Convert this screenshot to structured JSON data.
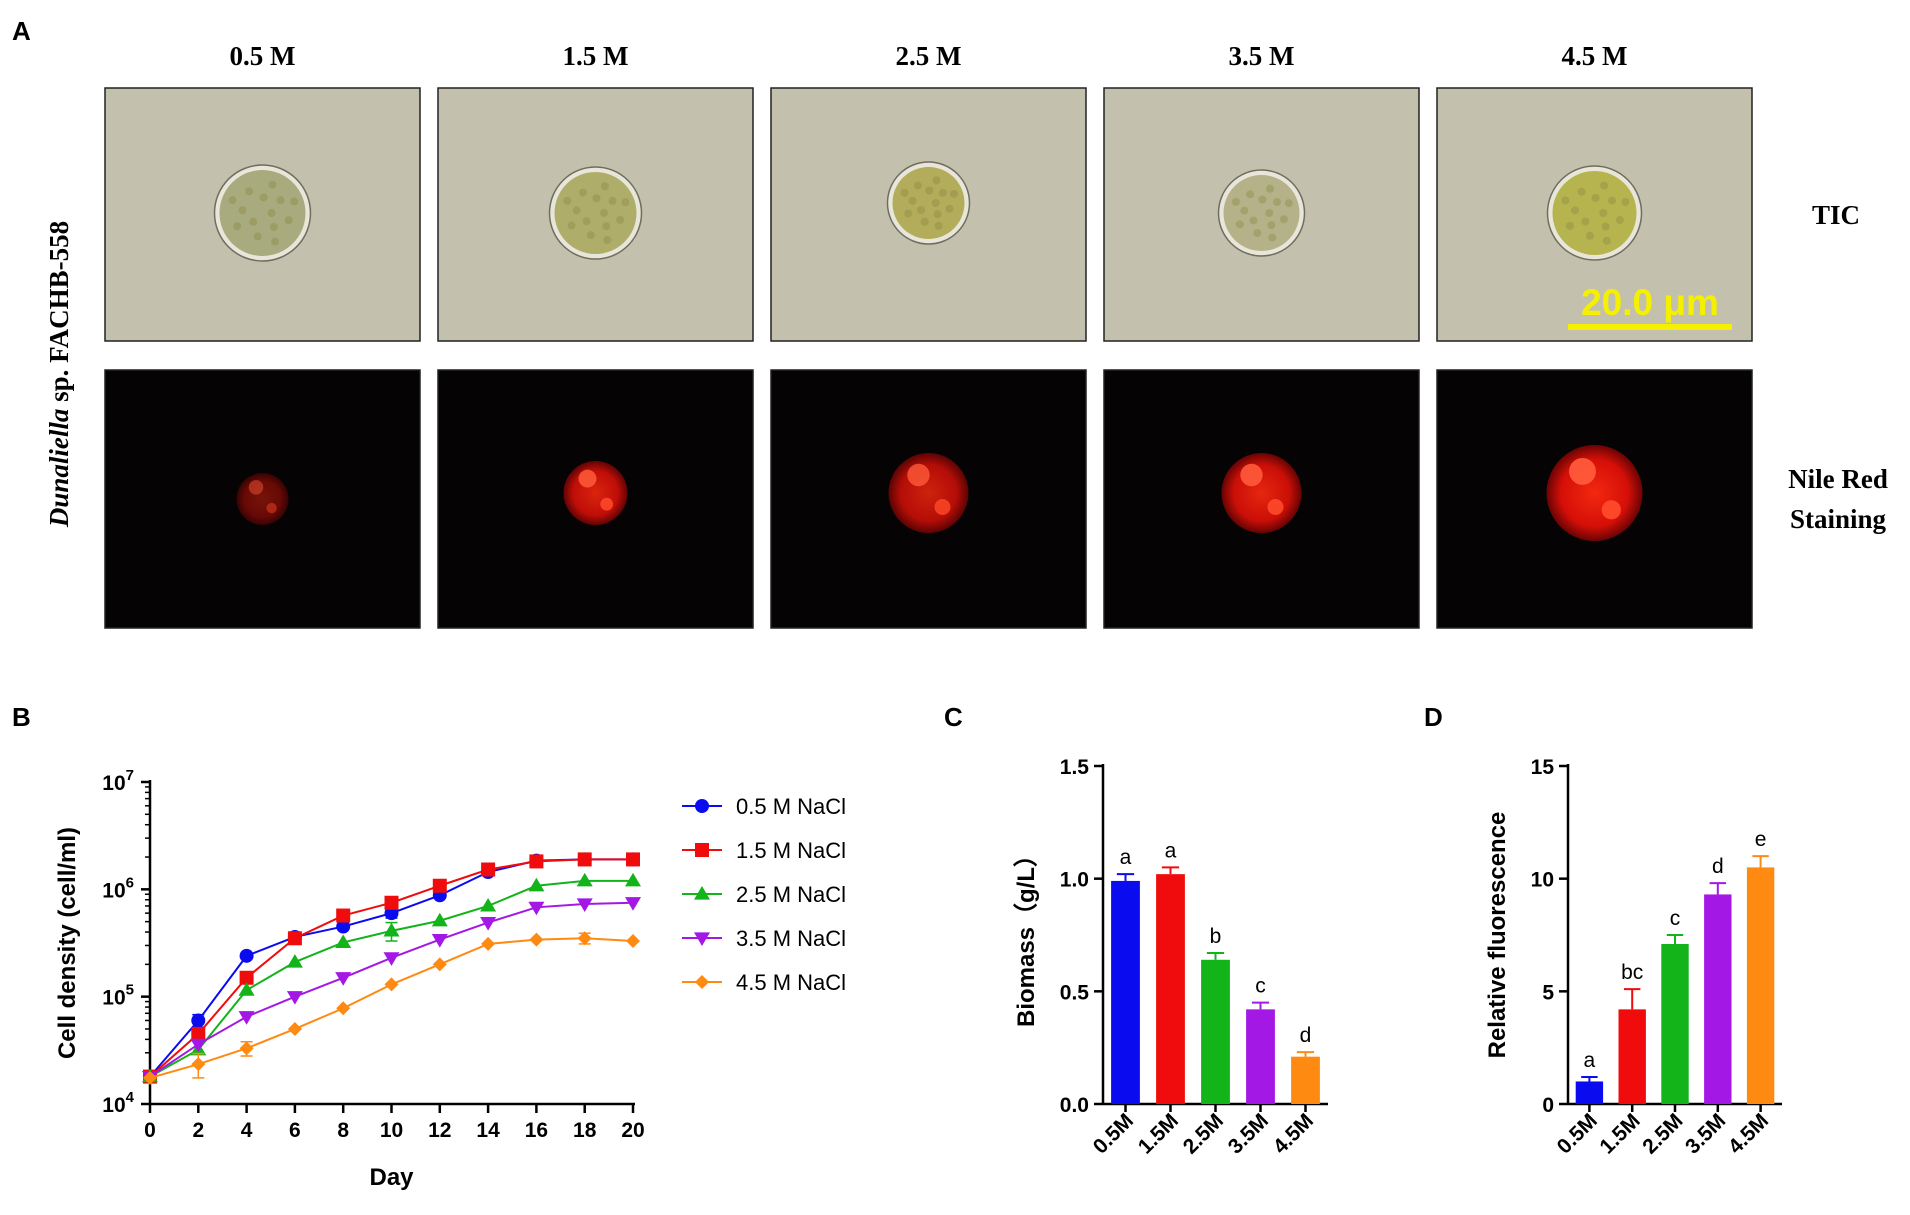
{
  "panel_a": {
    "label": "A",
    "species_italic": "Dunaliella",
    "species_rest": " sp. FACHB-558",
    "columns": [
      "0.5 M",
      "1.5 M",
      "2.5 M",
      "3.5 M",
      "4.5 M"
    ],
    "row_labels": {
      "tic": "TIC",
      "nile_line1": "Nile Red",
      "nile_line2": "Staining"
    },
    "scale_bar": "20.0 μm",
    "cells": {
      "tic_fill": [
        "#a7ab7e",
        "#aeae6a",
        "#b3ac5a",
        "#b5b28a",
        "#b6b44e"
      ],
      "nile_intensity": [
        0.45,
        0.85,
        0.8,
        0.9,
        0.95
      ],
      "nile_radius": [
        26,
        32,
        40,
        40,
        48
      ],
      "tic_radius": [
        45,
        43,
        38,
        40,
        44
      ]
    }
  },
  "panel_b": {
    "label": "B"
  },
  "panel_c": {
    "label": "C"
  },
  "panel_d": {
    "label": "D"
  },
  "colors": {
    "blue": "#0b0bf0",
    "red": "#f00c0c",
    "green": "#13b31a",
    "purple": "#a418e6",
    "orange": "#ff8a12",
    "scale": "#f5f000",
    "tic_bg": "#c3c1ae",
    "nile_bg": "#050303"
  },
  "chart_data": [
    {
      "type": "line",
      "panel": "B",
      "xlabel": "Day",
      "ylabel": "Cell density (cell/ml)",
      "y_scale": "log",
      "ylim": [
        10000,
        10000000
      ],
      "yticks": [
        {
          "base": "10",
          "exp": "4"
        },
        {
          "base": "10",
          "exp": "5"
        },
        {
          "base": "10",
          "exp": "6"
        },
        {
          "base": "10",
          "exp": "7"
        }
      ],
      "x": [
        0,
        2,
        4,
        6,
        8,
        10,
        12,
        14,
        16,
        18,
        20
      ],
      "xticks": [
        "0",
        "2",
        "4",
        "6",
        "8",
        "10",
        "12",
        "14",
        "16",
        "18",
        "20"
      ],
      "legend_position": "right",
      "series": [
        {
          "name": "0.5 M NaCl",
          "color": "#0b0bf0",
          "marker": "circle",
          "values": [
            18000,
            60000,
            240000,
            360000,
            450000,
            600000,
            880000,
            1450000,
            1850000,
            1900000,
            1900000
          ],
          "errors": [
            0,
            8000,
            0,
            0,
            0,
            60000,
            0,
            0,
            0,
            0,
            0
          ]
        },
        {
          "name": "1.5 M NaCl",
          "color": "#f00c0c",
          "marker": "square",
          "values": [
            18000,
            45000,
            150000,
            350000,
            570000,
            750000,
            1080000,
            1530000,
            1820000,
            1900000,
            1900000
          ],
          "errors": [
            0,
            0,
            0,
            0,
            0,
            0,
            0,
            0,
            0,
            0,
            0
          ]
        },
        {
          "name": "2.5 M NaCl",
          "color": "#13b31a",
          "marker": "triangle-up",
          "values": [
            18000,
            32000,
            115000,
            210000,
            320000,
            410000,
            510000,
            700000,
            1080000,
            1200000,
            1200000
          ],
          "errors": [
            0,
            0,
            0,
            0,
            0,
            80000,
            0,
            0,
            0,
            0,
            0
          ]
        },
        {
          "name": "3.5 M NaCl",
          "color": "#a418e6",
          "marker": "triangle-down",
          "values": [
            18000,
            36000,
            65000,
            100000,
            150000,
            230000,
            340000,
            490000,
            680000,
            730000,
            750000
          ],
          "errors": [
            0,
            0,
            0,
            0,
            0,
            0,
            0,
            0,
            0,
            0,
            0
          ]
        },
        {
          "name": "4.5 M NaCl",
          "color": "#ff8a12",
          "marker": "diamond",
          "values": [
            17500,
            23500,
            33000,
            50000,
            78000,
            130000,
            200000,
            310000,
            340000,
            350000,
            330000
          ],
          "errors": [
            0,
            6000,
            5000,
            0,
            0,
            0,
            0,
            0,
            0,
            40000,
            0
          ]
        }
      ]
    },
    {
      "type": "bar",
      "panel": "C",
      "ylabel": "Biomass（g/L）",
      "ylim": [
        0,
        1.5
      ],
      "yticks": [
        "0.0",
        "0.5",
        "1.0",
        "1.5"
      ],
      "categories": [
        "0.5M",
        "1.5M",
        "2.5M",
        "3.5M",
        "4.5M"
      ],
      "values": [
        0.99,
        1.02,
        0.64,
        0.42,
        0.21
      ],
      "errors": [
        0.03,
        0.03,
        0.03,
        0.03,
        0.02
      ],
      "letters": [
        "a",
        "a",
        "b",
        "c",
        "d"
      ],
      "colors": [
        "#0b0bf0",
        "#f00c0c",
        "#13b31a",
        "#a418e6",
        "#ff8a12"
      ]
    },
    {
      "type": "bar",
      "panel": "D",
      "ylabel": "Relative fluorescence",
      "ylim": [
        0,
        15
      ],
      "yticks": [
        "0",
        "5",
        "10",
        "15"
      ],
      "categories": [
        "0.5M",
        "1.5M",
        "2.5M",
        "3.5M",
        "4.5M"
      ],
      "values": [
        1.0,
        4.2,
        7.1,
        9.3,
        10.5
      ],
      "errors": [
        0.2,
        0.9,
        0.4,
        0.5,
        0.5
      ],
      "letters": [
        "a",
        "bc",
        "c",
        "d",
        "e"
      ],
      "colors": [
        "#0b0bf0",
        "#f00c0c",
        "#13b31a",
        "#a418e6",
        "#ff8a12"
      ]
    }
  ]
}
